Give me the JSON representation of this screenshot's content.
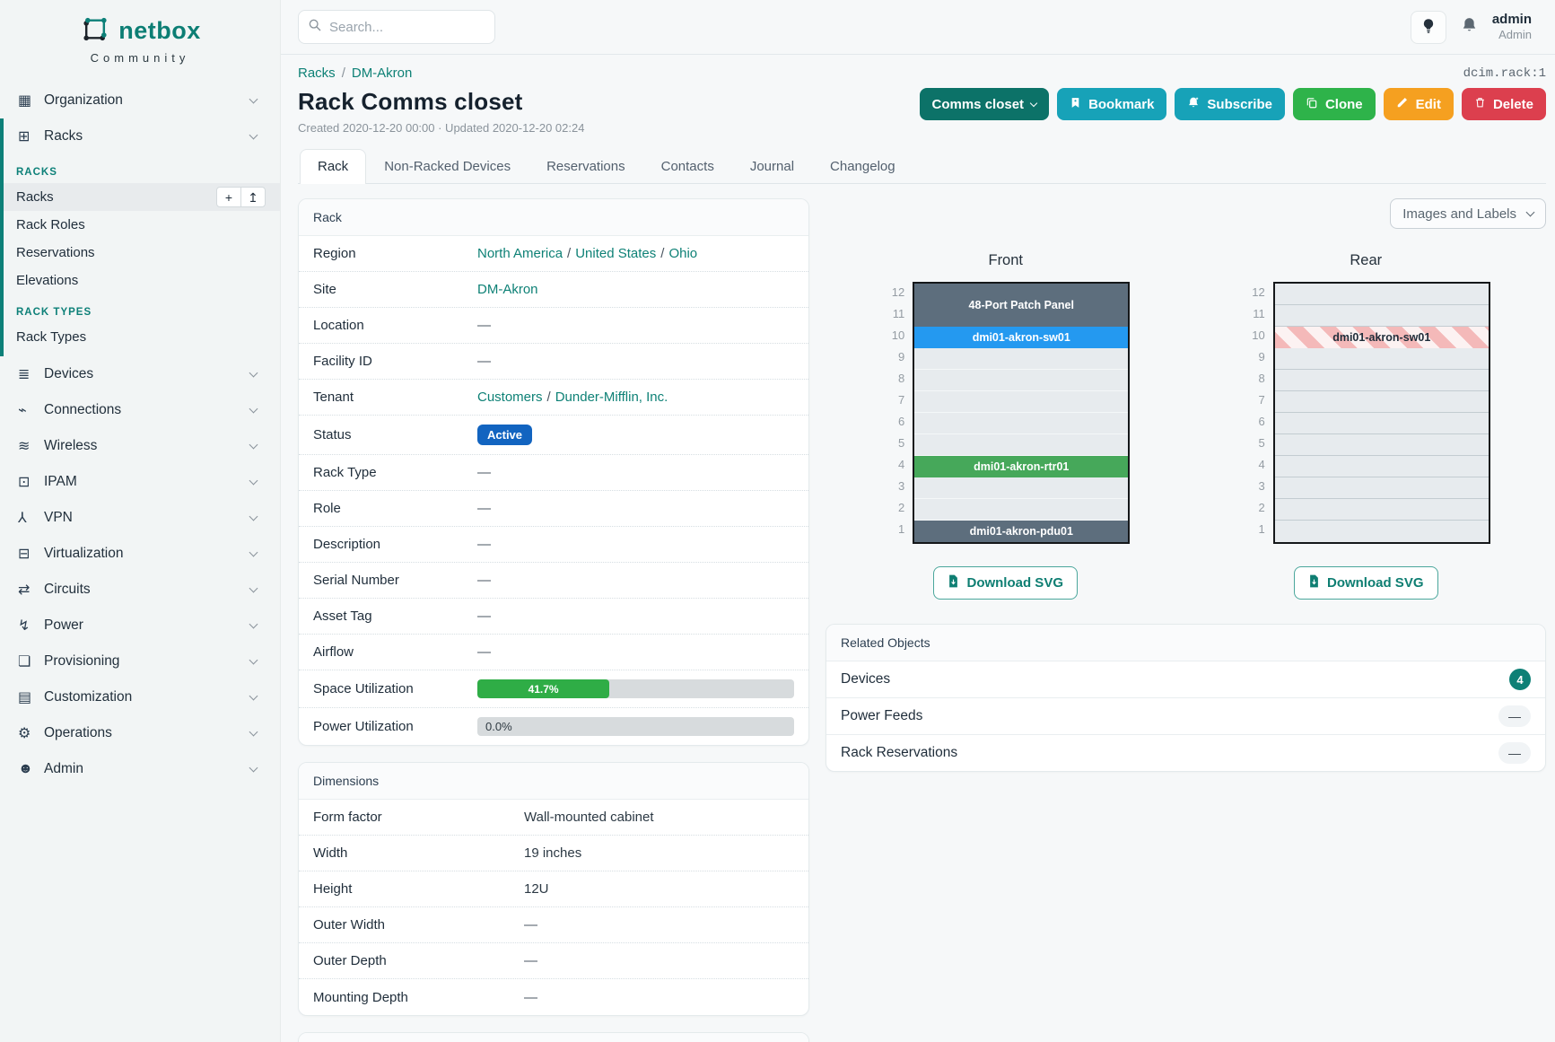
{
  "brand": {
    "name": "netbox",
    "subtitle": "Community"
  },
  "topbar": {
    "search_placeholder": "Search...",
    "user": "admin",
    "role": "Admin"
  },
  "object_id": "dcim.rack:1",
  "breadcrumb": {
    "items": [
      "Racks",
      "DM-Akron"
    ]
  },
  "page": {
    "title": "Rack Comms closet",
    "meta": "Created 2020-12-20 00:00 · Updated 2020-12-20 02:24"
  },
  "actions": {
    "scope": "Comms closet",
    "bookmark": "Bookmark",
    "subscribe": "Subscribe",
    "clone": "Clone",
    "edit": "Edit",
    "delete": "Delete"
  },
  "tabs": [
    {
      "label": "Rack",
      "active": true
    },
    {
      "label": "Non-Racked Devices",
      "active": false
    },
    {
      "label": "Reservations",
      "active": false
    },
    {
      "label": "Contacts",
      "active": false
    },
    {
      "label": "Journal",
      "active": false
    },
    {
      "label": "Changelog",
      "active": false
    }
  ],
  "sidebar": {
    "top_items": [
      {
        "label": "Organization",
        "glyph": "▦"
      },
      {
        "label": "Racks",
        "glyph": "⊞"
      }
    ],
    "racks_group": {
      "accent_color": "#0d8078",
      "sections": [
        {
          "header": "RACKS",
          "items": [
            {
              "label": "Racks",
              "active": true,
              "actions": [
                {
                  "name": "add",
                  "glyph": "+"
                },
                {
                  "name": "import",
                  "glyph": "↥"
                }
              ]
            },
            {
              "label": "Rack Roles"
            },
            {
              "label": "Reservations"
            },
            {
              "label": "Elevations"
            }
          ]
        },
        {
          "header": "RACK TYPES",
          "items": [
            {
              "label": "Rack Types"
            }
          ]
        }
      ]
    },
    "bottom_items": [
      {
        "label": "Devices",
        "glyph": "≣"
      },
      {
        "label": "Connections",
        "glyph": "⌁"
      },
      {
        "label": "Wireless",
        "glyph": "≋"
      },
      {
        "label": "IPAM",
        "glyph": "⊡"
      },
      {
        "label": "VPN",
        "glyph": "⅄"
      },
      {
        "label": "Virtualization",
        "glyph": "⊟"
      },
      {
        "label": "Circuits",
        "glyph": "⇄"
      },
      {
        "label": "Power",
        "glyph": "↯"
      },
      {
        "label": "Provisioning",
        "glyph": "❏"
      },
      {
        "label": "Customization",
        "glyph": "▤"
      },
      {
        "label": "Operations",
        "glyph": "⚙"
      },
      {
        "label": "Admin",
        "glyph": "☻"
      }
    ]
  },
  "rack_panel": {
    "title": "Rack",
    "rows": [
      {
        "label": "Region",
        "type": "links",
        "parts": [
          "North America",
          "United States",
          "Ohio"
        ]
      },
      {
        "label": "Site",
        "type": "links",
        "parts": [
          "DM-Akron"
        ]
      },
      {
        "label": "Location",
        "type": "dash"
      },
      {
        "label": "Facility ID",
        "type": "dash"
      },
      {
        "label": "Tenant",
        "type": "links",
        "parts": [
          "Customers",
          "Dunder-Mifflin, Inc."
        ]
      },
      {
        "label": "Status",
        "type": "badge",
        "text": "Active",
        "color": "#1264c0"
      },
      {
        "label": "Rack Type",
        "type": "dash"
      },
      {
        "label": "Role",
        "type": "dash"
      },
      {
        "label": "Description",
        "type": "dash"
      },
      {
        "label": "Serial Number",
        "type": "dash"
      },
      {
        "label": "Asset Tag",
        "type": "dash"
      },
      {
        "label": "Airflow",
        "type": "dash"
      },
      {
        "label": "Space Utilization",
        "type": "bar",
        "percent": 41.7,
        "text": "41.7%",
        "fill": "#2fad46"
      },
      {
        "label": "Power Utilization",
        "type": "bar",
        "percent": 0,
        "text": "0.0%",
        "fill": "#2fad46"
      }
    ]
  },
  "dimensions_panel": {
    "title": "Dimensions",
    "rows": [
      {
        "label": "Form factor",
        "type": "text",
        "text": "Wall-mounted cabinet"
      },
      {
        "label": "Width",
        "type": "text",
        "text": "19 inches"
      },
      {
        "label": "Height",
        "type": "text",
        "text": "12U"
      },
      {
        "label": "Outer Width",
        "type": "dash"
      },
      {
        "label": "Outer Depth",
        "type": "dash"
      },
      {
        "label": "Mounting Depth",
        "type": "dash"
      }
    ]
  },
  "elevations": {
    "view_toggle_label": "Images and Labels",
    "download_label": "Download SVG",
    "units": 12,
    "front": {
      "title": "Front",
      "devices": [
        {
          "top_u": 12,
          "span": 2,
          "label": "48-Port Patch Panel",
          "bg": "#5d6e7d",
          "fg": "#ffffff"
        },
        {
          "top_u": 10,
          "span": 1,
          "label": "dmi01-akron-sw01",
          "bg": "#2499f0",
          "fg": "#ffffff"
        },
        {
          "top_u": 4,
          "span": 1,
          "label": "dmi01-akron-rtr01",
          "bg": "#46a85a",
          "fg": "#ffffff"
        },
        {
          "top_u": 1,
          "span": 1,
          "label": "dmi01-akron-pdu01",
          "bg": "#5d6e7d",
          "fg": "#ffffff"
        }
      ]
    },
    "rear": {
      "title": "Rear",
      "devices": [
        {
          "top_u": 10,
          "span": 1,
          "label": "dmi01-akron-sw01",
          "striped": true,
          "fg": "#1f2d3a"
        }
      ]
    }
  },
  "related": {
    "title": "Related Objects",
    "rows": [
      {
        "label": "Devices",
        "badge": "4"
      },
      {
        "label": "Power Feeds",
        "dash": "—"
      },
      {
        "label": "Rack Reservations",
        "dash": "—"
      }
    ]
  },
  "misc": {
    "dash": "—",
    "crumb_separator": "/"
  }
}
